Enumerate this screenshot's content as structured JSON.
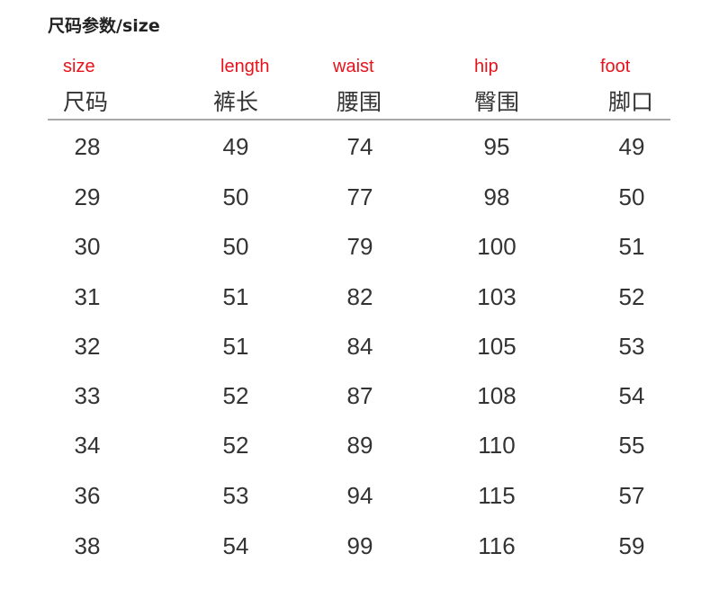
{
  "title": "尺码参数/size",
  "columns": [
    {
      "en": "size",
      "cn": "尺码"
    },
    {
      "en": "length",
      "cn": "裤长"
    },
    {
      "en": "waist",
      "cn": "腰围"
    },
    {
      "en": "hip",
      "cn": "臀围"
    },
    {
      "en": "foot",
      "cn": "脚口"
    }
  ],
  "rows": [
    [
      "28",
      "49",
      "74",
      "95",
      "49"
    ],
    [
      "29",
      "50",
      "77",
      "98",
      "50"
    ],
    [
      "30",
      "50",
      "79",
      "100",
      "51"
    ],
    [
      "31",
      "51",
      "82",
      "103",
      "52"
    ],
    [
      "32",
      "51",
      "84",
      "105",
      "53"
    ],
    [
      "33",
      "52",
      "87",
      "108",
      "54"
    ],
    [
      "34",
      "52",
      "89",
      "110",
      "55"
    ],
    [
      "36",
      "53",
      "94",
      "115",
      "57"
    ],
    [
      "38",
      "54",
      "99",
      "116",
      "59"
    ]
  ],
  "colors": {
    "english_label": "#e8121a",
    "text": "#333333"
  }
}
